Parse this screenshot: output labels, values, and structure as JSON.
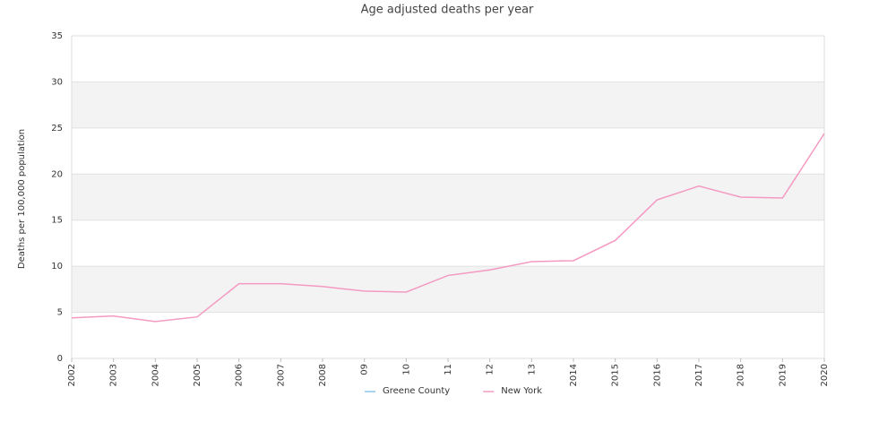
{
  "chart_data": {
    "type": "line",
    "title": "Age adjusted deaths per year",
    "y_label": "Deaths per 100,000 population",
    "categories": [
      "2002",
      "2003",
      "2004",
      "2005",
      "2006",
      "2007",
      "2008",
      "09",
      "10",
      "11",
      "12",
      "13",
      "2014",
      "2015",
      "2016",
      "2017",
      "2018",
      "2019",
      "2020"
    ],
    "series": [
      {
        "name": "Greene County",
        "color": "#8cc4e8",
        "values": [
          null,
          null,
          null,
          null,
          null,
          null,
          null,
          null,
          null,
          null,
          null,
          null,
          null,
          null,
          null,
          null,
          null,
          null,
          null
        ]
      },
      {
        "name": "New York",
        "color": "#f49ac2",
        "values": [
          4.4,
          4.6,
          4.0,
          4.5,
          8.1,
          8.1,
          7.8,
          7.3,
          7.2,
          9.0,
          9.6,
          10.5,
          10.6,
          12.8,
          17.2,
          18.7,
          17.5,
          17.4,
          24.4
        ]
      }
    ],
    "ylim": [
      0,
      35
    ],
    "yticks": [
      0,
      5,
      10,
      15,
      20,
      25,
      30,
      35
    ],
    "grid": true,
    "legend": "bottom"
  }
}
